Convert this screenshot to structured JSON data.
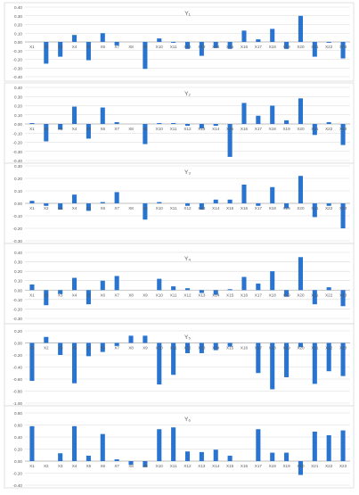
{
  "colors": {
    "bar": "#2874D0",
    "grid": "#D9D9D9",
    "axis": "#BFBFBF",
    "text": "#595959",
    "border": "#D9D9D9"
  },
  "chart_data": [
    {
      "type": "bar",
      "title": "Y₁",
      "categories": [
        "X1",
        "X2",
        "X3",
        "X4",
        "X5",
        "X6",
        "X7",
        "X8",
        "X9",
        "X10",
        "X11",
        "X12",
        "X13",
        "X14",
        "X15",
        "X16",
        "X17",
        "X18",
        "X19",
        "X20",
        "X21",
        "X22",
        "X23"
      ],
      "values": [
        0.0,
        -0.25,
        -0.17,
        0.08,
        -0.21,
        0.1,
        -0.04,
        0.0,
        -0.31,
        0.04,
        -0.01,
        -0.08,
        -0.16,
        -0.07,
        -0.08,
        0.13,
        0.03,
        0.15,
        -0.08,
        0.3,
        -0.17,
        -0.01,
        -0.19
      ],
      "ylim": [
        -0.4,
        0.4
      ],
      "ytick_step": 0.1,
      "ytick_labels": [
        "0.40",
        "0.30",
        "0.20",
        "0.10",
        "0.00",
        "-0.10",
        "-0.20",
        "-0.30",
        "-0.40"
      ],
      "grid": true
    },
    {
      "type": "bar",
      "title": "Y₂",
      "categories": [
        "X1",
        "X2",
        "X3",
        "X4",
        "X5",
        "X6",
        "X7",
        "X8",
        "X9",
        "X10",
        "X11",
        "X12",
        "X13",
        "X14",
        "X15",
        "X16",
        "X17",
        "X18",
        "X19",
        "X20",
        "X21",
        "X22",
        "X23"
      ],
      "values": [
        0.01,
        -0.19,
        -0.06,
        0.19,
        -0.16,
        0.18,
        0.02,
        0.0,
        -0.22,
        0.01,
        0.01,
        -0.02,
        -0.05,
        -0.02,
        -0.36,
        0.23,
        0.09,
        0.2,
        0.04,
        0.28,
        -0.12,
        0.02,
        -0.23
      ],
      "ylim": [
        -0.4,
        0.4
      ],
      "ytick_step": 0.1,
      "ytick_labels": [
        "0.40",
        "0.30",
        "0.20",
        "0.10",
        "0.00",
        "-0.10",
        "-0.20",
        "-0.30",
        "-0.40"
      ],
      "grid": true
    },
    {
      "type": "bar",
      "title": "Y₃",
      "categories": [
        "X1",
        "X2",
        "X3",
        "X4",
        "X5",
        "X6",
        "X7",
        "X8",
        "X9",
        "X10",
        "X11",
        "X12",
        "X13",
        "X14",
        "X15",
        "X16",
        "X17",
        "X18",
        "X19",
        "X20",
        "X21",
        "X22",
        "X23"
      ],
      "values": [
        0.02,
        -0.02,
        -0.05,
        0.07,
        -0.06,
        0.01,
        0.09,
        0.0,
        -0.13,
        0.01,
        0.0,
        -0.02,
        -0.05,
        0.03,
        0.03,
        0.15,
        -0.02,
        0.13,
        -0.04,
        0.22,
        -0.11,
        -0.02,
        -0.2
      ],
      "ylim": [
        -0.3,
        0.3
      ],
      "ytick_step": 0.1,
      "ytick_labels": [
        "0.30",
        "0.20",
        "0.10",
        "0.00",
        "-0.10",
        "-0.20",
        "-0.30"
      ],
      "grid": true
    },
    {
      "type": "bar",
      "title": "Y₄",
      "categories": [
        "X1",
        "X2",
        "X3",
        "X4",
        "X5",
        "X6",
        "X7",
        "X8",
        "X9",
        "X10",
        "X11",
        "X12",
        "X13",
        "X14",
        "X15",
        "X16",
        "X17",
        "X18",
        "X19",
        "X20",
        "X21",
        "X22",
        "X23"
      ],
      "values": [
        0.06,
        -0.16,
        -0.04,
        0.13,
        -0.15,
        0.1,
        0.15,
        0.0,
        0.0,
        0.12,
        0.04,
        0.02,
        -0.03,
        -0.05,
        0.01,
        0.14,
        0.07,
        0.2,
        -0.07,
        0.35,
        -0.15,
        0.03,
        -0.17
      ],
      "ylim": [
        -0.3,
        0.4
      ],
      "ytick_step": 0.1,
      "ytick_labels": [
        "0.40",
        "0.30",
        "0.20",
        "0.10",
        "0.00",
        "-0.10",
        "-0.20",
        "-0.30"
      ],
      "grid": true
    },
    {
      "type": "bar",
      "title": "Y₅",
      "categories": [
        "X1",
        "X2",
        "X3",
        "X4",
        "X5",
        "X6",
        "X7",
        "X8",
        "X9",
        "X10",
        "X11",
        "X12",
        "X13",
        "X14",
        "X15",
        "X16",
        "X17",
        "X18",
        "X19",
        "X20",
        "X21",
        "X22",
        "X23"
      ],
      "values": [
        -0.63,
        0.1,
        -0.2,
        -0.67,
        -0.22,
        -0.15,
        -0.05,
        0.12,
        0.12,
        -0.69,
        -0.53,
        -0.17,
        -0.17,
        -0.12,
        -0.06,
        0.0,
        -0.5,
        -0.77,
        -0.57,
        -0.07,
        -0.68,
        -0.47,
        -0.55
      ],
      "ylim": [
        -1.0,
        0.2
      ],
      "ytick_step": 0.2,
      "ytick_labels": [
        "0.20",
        "0.00",
        "-0.20",
        "-0.40",
        "-0.60",
        "-0.80",
        "-1.00"
      ],
      "grid": true
    },
    {
      "type": "bar",
      "title": "Y₆",
      "categories": [
        "X1",
        "X2",
        "X3",
        "X4",
        "X5",
        "X6",
        "X7",
        "X8",
        "X9",
        "X10",
        "X11",
        "X12",
        "X13",
        "X14",
        "X15",
        "X16",
        "X17",
        "X18",
        "X19",
        "X20",
        "X21",
        "X22",
        "X23"
      ],
      "values": [
        0.58,
        0.0,
        0.13,
        0.58,
        0.09,
        0.45,
        0.03,
        -0.06,
        -0.1,
        0.53,
        0.56,
        0.16,
        0.15,
        0.19,
        0.09,
        0.0,
        0.53,
        0.14,
        0.14,
        -0.23,
        0.49,
        0.43,
        0.51
      ],
      "ylim": [
        -0.4,
        0.8
      ],
      "ytick_step": 0.2,
      "ytick_labels": [
        "0.80",
        "0.60",
        "0.40",
        "0.20",
        "0.00",
        "-0.20",
        "-0.40"
      ],
      "grid": true
    }
  ]
}
